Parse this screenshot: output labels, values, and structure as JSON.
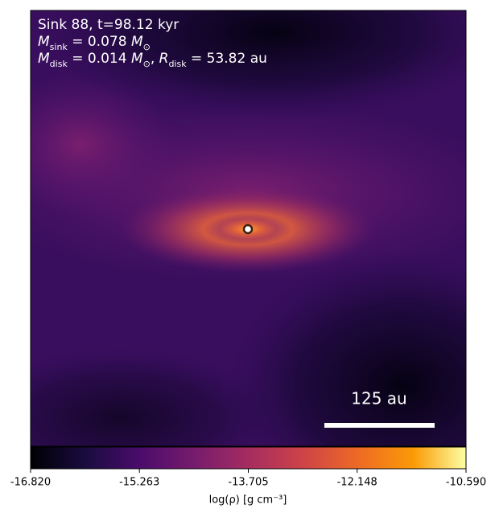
{
  "chart_data": {
    "type": "heatmap",
    "annotations": [
      [
        {
          "t": "Sink 88, t=98.12 kyr"
        }
      ],
      [
        {
          "t": "M",
          "italic": true
        },
        {
          "t": "sink",
          "sub": true
        },
        {
          "t": " = 0.078 "
        },
        {
          "t": "M",
          "italic": true
        },
        {
          "t": "⊙",
          "sub": true
        }
      ],
      [
        {
          "t": "M",
          "italic": true
        },
        {
          "t": "disk",
          "sub": true
        },
        {
          "t": " = 0.014 "
        },
        {
          "t": "M",
          "italic": true
        },
        {
          "t": "⊙",
          "sub": true
        },
        {
          "t": ", "
        },
        {
          "t": "R",
          "italic": true
        },
        {
          "t": "disk",
          "sub": true
        },
        {
          "t": " = 53.82 au"
        }
      ]
    ],
    "scale_bar_label": "125 au",
    "colormap": "inferno",
    "colorbar_label": "log(ρ) [g cm⁻³]",
    "clim": [
      -16.82,
      -10.59
    ],
    "cticks": [
      {
        "value": -16.82,
        "label": "-16.820"
      },
      {
        "value": -15.263,
        "label": "-15.263"
      },
      {
        "value": -13.705,
        "label": "-13.705"
      },
      {
        "value": -12.148,
        "label": "-12.148"
      },
      {
        "value": -10.59,
        "label": "-10.590"
      }
    ]
  }
}
